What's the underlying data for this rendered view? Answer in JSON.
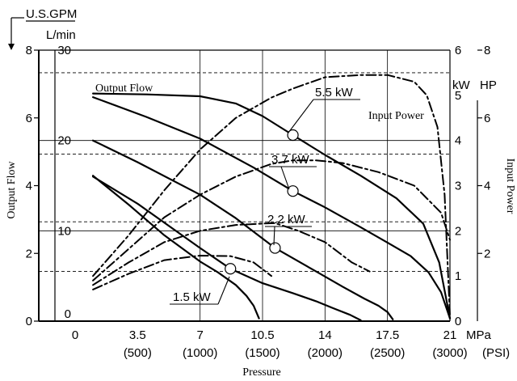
{
  "chart_data": {
    "type": "line",
    "xlabel": "Pressure",
    "ylabel_left": "Output Flow",
    "ylabel_right": "Input Power",
    "series_labels": {
      "output_flow": "Output Flow",
      "input_power": "Input Power"
    },
    "units": {
      "us_gpm": "U.S.GPM",
      "l_min": "L/min",
      "kw": "kW",
      "hp": "HP",
      "mpa": "MPa",
      "psi": "(PSI)"
    },
    "axes": {
      "x_mpa": {
        "range": [
          0,
          21
        ],
        "ticks": [
          "0",
          "3.5",
          "7",
          "10.5",
          "14",
          "17.5",
          "21"
        ]
      },
      "x_psi": {
        "ticks": [
          "(500)",
          "(1000)",
          "(1500)",
          "(2000)",
          "(2500)",
          "(3000)"
        ]
      },
      "y_lmin": {
        "range": [
          0,
          30
        ],
        "ticks": [
          "0",
          "10",
          "20",
          "30"
        ]
      },
      "y_gpm": {
        "range": [
          0,
          8
        ],
        "ticks": [
          "0",
          "2",
          "4",
          "6",
          "8"
        ]
      },
      "y_kw": {
        "range": [
          0,
          6
        ],
        "ticks": [
          "0",
          "1",
          "2",
          "3",
          "4",
          "5",
          "6"
        ]
      },
      "y_hp": {
        "range": [
          0,
          8
        ],
        "ticks": [
          "2",
          "4",
          "6",
          "8"
        ]
      }
    },
    "grid": true,
    "ref_kw_lines": [
      1.1,
      2.2,
      3.7,
      5.5
    ],
    "power_ratings": [
      {
        "label": "5.5 kW",
        "marker": [
          12.2,
          20.6
        ]
      },
      {
        "label": "3.7 kW",
        "marker": [
          12.2,
          14.4
        ]
      },
      {
        "label": "2.2 kW",
        "marker": [
          11.2,
          8.1
        ]
      },
      {
        "label": "1.5 kW",
        "marker": [
          8.7,
          5.8
        ]
      }
    ],
    "series": [
      {
        "curve": "flow",
        "rating": "5.5 kW",
        "x": [
          1,
          4,
          7,
          9,
          10.5,
          12.2,
          14,
          16,
          18,
          19.5,
          20.4,
          21
        ],
        "y": [
          25.2,
          25.1,
          24.9,
          24.1,
          22.7,
          20.6,
          18.4,
          16.1,
          13.6,
          10.8,
          6.5,
          0.3
        ]
      },
      {
        "curve": "flow",
        "rating": "3.7 kW",
        "x": [
          1,
          4,
          7,
          10,
          12.2,
          14,
          16,
          17.5,
          18.8,
          19.8,
          20.5,
          21
        ],
        "y": [
          24.8,
          22.6,
          20.2,
          17.0,
          14.4,
          12.6,
          10.4,
          8.7,
          7.2,
          5.4,
          3.2,
          0.3
        ]
      },
      {
        "curve": "flow",
        "rating": "2.2 kW",
        "x": [
          1,
          3.5,
          7,
          9,
          11.2,
          13.5,
          15,
          16.2,
          17.0,
          17.5,
          17.8
        ],
        "y": [
          20.0,
          17.6,
          14.0,
          11.4,
          8.1,
          5.5,
          3.8,
          2.5,
          1.7,
          1.0,
          0.2
        ]
      },
      {
        "curve": "flow",
        "rating": "1.5 kW",
        "x": [
          1,
          3.5,
          7,
          8.7,
          10.5,
          12.2,
          13.5,
          14.5,
          15.4,
          16.0
        ],
        "y": [
          16.0,
          13.0,
          8.1,
          5.8,
          4.2,
          3.1,
          2.2,
          1.4,
          0.7,
          0.1
        ]
      },
      {
        "curve": "flow",
        "rating": "1.5 kW lower",
        "x": [
          1,
          3,
          5,
          7,
          8,
          9,
          9.6,
          10.0,
          10.3
        ],
        "y": [
          16.1,
          12.9,
          9.5,
          6.6,
          5.4,
          4.0,
          2.8,
          1.7,
          0.3
        ]
      },
      {
        "curve": "power",
        "rating": "5.5 kW",
        "x": [
          1,
          3,
          5,
          7,
          9,
          11,
          12.2,
          14,
          16,
          17.5,
          19,
          19.7,
          20.3,
          20.7,
          21
        ],
        "y": [
          1.0,
          1.9,
          2.9,
          3.8,
          4.5,
          4.95,
          5.15,
          5.4,
          5.45,
          5.45,
          5.3,
          5.0,
          4.3,
          2.8,
          0.1
        ]
      },
      {
        "curve": "power",
        "rating": "3.7 kW",
        "x": [
          1,
          3,
          5,
          7,
          9,
          11,
          12.2,
          13.5,
          15,
          17,
          19,
          20.5,
          21
        ],
        "y": [
          0.9,
          1.6,
          2.3,
          2.8,
          3.2,
          3.48,
          3.56,
          3.56,
          3.5,
          3.3,
          3.0,
          2.4,
          1.8
        ]
      },
      {
        "curve": "power",
        "rating": "2.2 kW",
        "x": [
          1,
          3,
          5,
          7,
          9,
          10.5,
          11.2,
          12.5,
          14,
          15.5,
          16.5
        ],
        "y": [
          0.8,
          1.3,
          1.75,
          2.0,
          2.13,
          2.16,
          2.17,
          2.0,
          1.75,
          1.3,
          1.1
        ]
      },
      {
        "curve": "power",
        "rating": "1.5 kW",
        "x": [
          1,
          3,
          5,
          7,
          8.7,
          10,
          11.0
        ],
        "y": [
          0.7,
          1.05,
          1.35,
          1.45,
          1.44,
          1.3,
          1.0
        ]
      }
    ]
  }
}
